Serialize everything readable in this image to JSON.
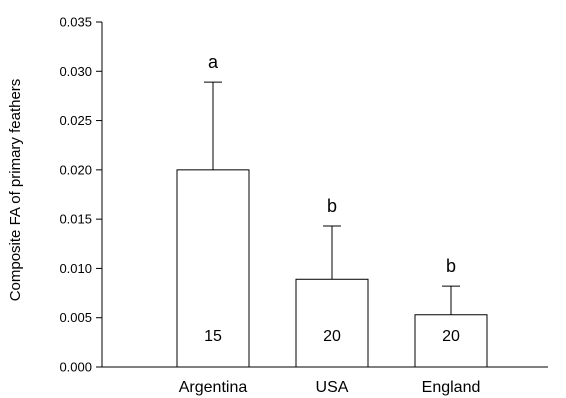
{
  "chart_data": {
    "type": "bar",
    "title": "",
    "xlabel": "",
    "ylabel": "Composite FA of primary feathers",
    "ylim": [
      0,
      0.035
    ],
    "yticks": [
      "0.000",
      "0.005",
      "0.010",
      "0.015",
      "0.020",
      "0.025",
      "0.030",
      "0.035"
    ],
    "grid": false,
    "categories": [
      "Argentina",
      "USA",
      "England"
    ],
    "values": [
      0.02,
      0.0089,
      0.0053
    ],
    "error_upper": [
      0.0289,
      0.0143,
      0.0082
    ],
    "significance_letters": [
      "a",
      "b",
      "b"
    ],
    "sample_sizes": [
      "15",
      "20",
      "20"
    ]
  }
}
